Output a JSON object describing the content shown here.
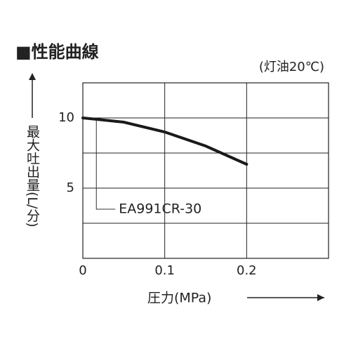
{
  "chart_data": {
    "type": "line",
    "title": "■性能曲線",
    "subtitle": "(灯油20℃)",
    "x_label": "圧力(MPa)",
    "y_label": "最大吐出量(L/分)",
    "x": [
      0,
      0.05,
      0.1,
      0.15,
      0.2
    ],
    "series": [
      {
        "name": "EA991CR-30",
        "color": "#1a1a1a",
        "label_color": "#e0161e",
        "values": [
          10,
          9.7,
          9.0,
          8.0,
          6.7
        ]
      }
    ],
    "xlim": [
      0,
      0.3
    ],
    "xticks": [
      0,
      0.1,
      0.2
    ],
    "ylim": [
      0,
      12.5
    ],
    "yticks": [
      5,
      10
    ],
    "yminor_ticks": [
      2.5,
      7.5,
      12.5
    ],
    "grid": true
  }
}
